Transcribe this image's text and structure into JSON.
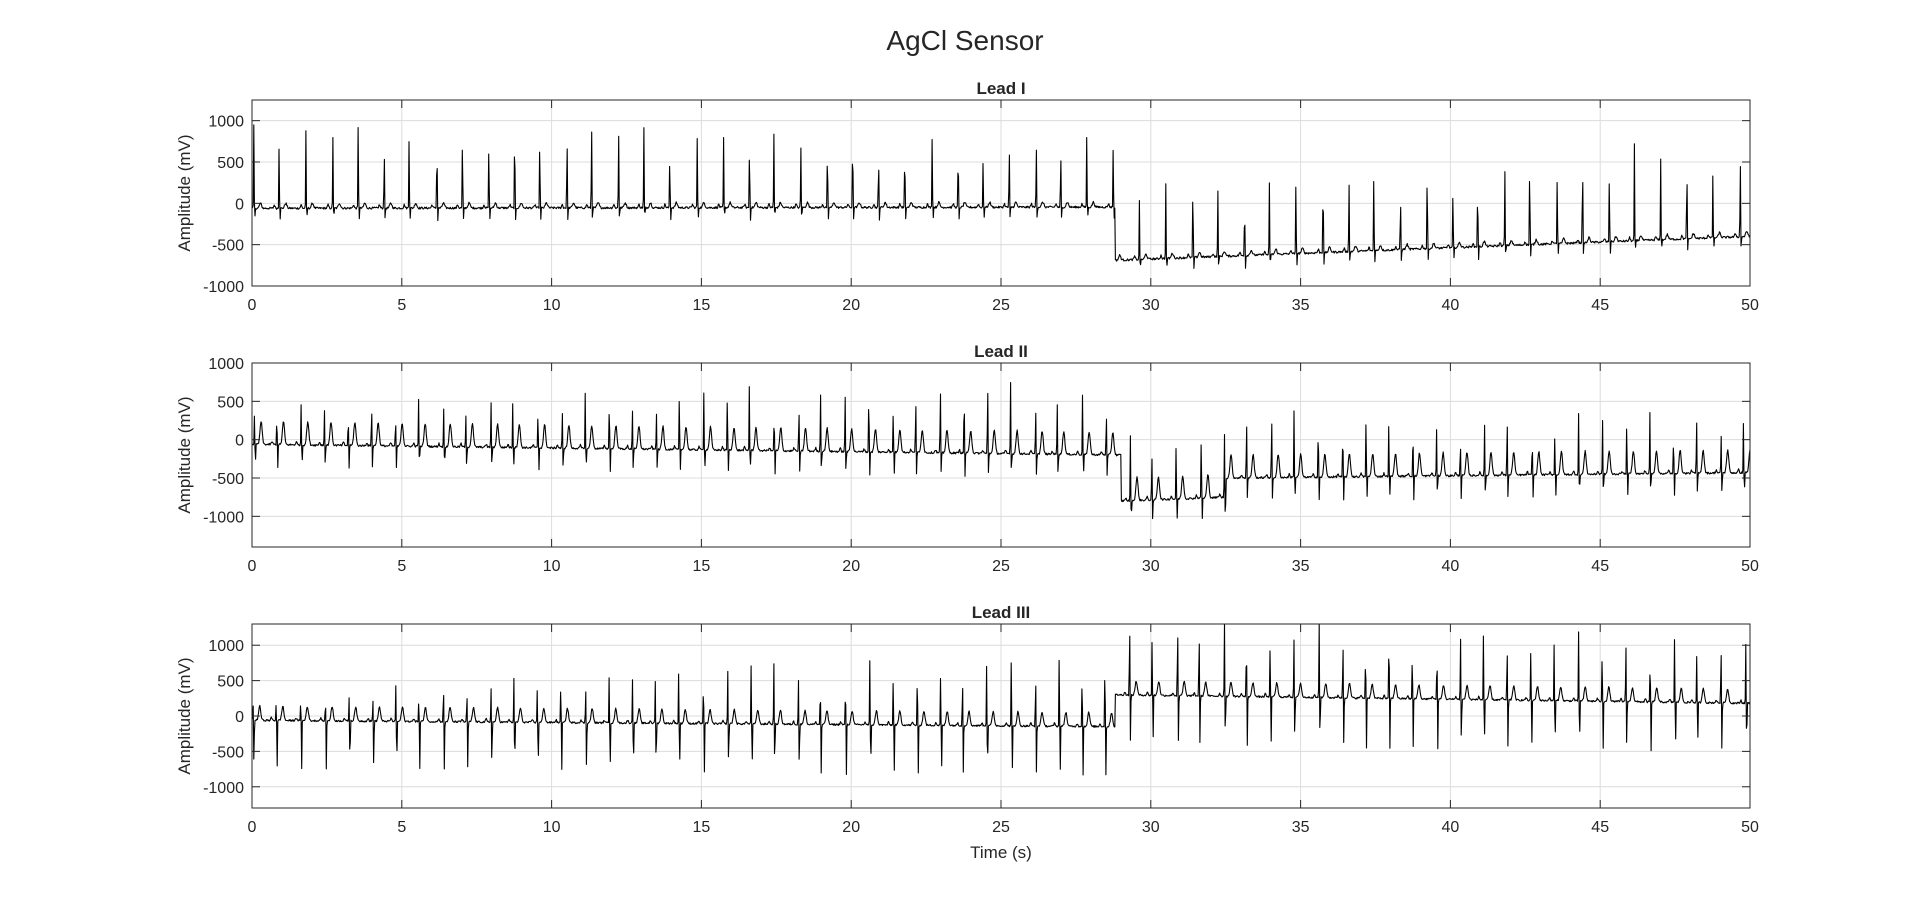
{
  "figure": {
    "title": "AgCl Sensor",
    "trace_color": "#000000",
    "grid_color": "#dcdcdc",
    "background": "#ffffff"
  },
  "chart_data": [
    {
      "type": "line",
      "title": "Lead I",
      "xlabel": "",
      "ylabel": "Amplitude (mV)",
      "xlim": [
        0,
        50
      ],
      "ylim": [
        -1000,
        1250
      ],
      "xticks": [
        0,
        5,
        10,
        15,
        20,
        25,
        30,
        35,
        40,
        45,
        50
      ],
      "yticks": [
        -1000,
        -500,
        0,
        500,
        1000
      ],
      "grid": true,
      "signal": {
        "segments": [
          {
            "t_start": 0,
            "t_end": 28.8,
            "baseline_start": -60,
            "baseline_end": -45
          },
          {
            "t_start": 28.8,
            "t_end": 50,
            "baseline_start": -690,
            "baseline_end": -400
          }
        ],
        "beat_interval_s": 0.87,
        "r_peak_approx_mv": [
          1100,
          750,
          1100
        ],
        "s_trough_depth_mv": 150,
        "t_wave_mv": 60
      }
    },
    {
      "type": "line",
      "title": "Lead II",
      "xlabel": "",
      "ylabel": "Amplitude (mV)",
      "xlim": [
        0,
        50
      ],
      "ylim": [
        -1400,
        1000
      ],
      "xticks": [
        0,
        5,
        10,
        15,
        20,
        25,
        30,
        35,
        40,
        45,
        50
      ],
      "yticks": [
        -1000,
        -500,
        0,
        500,
        1000
      ],
      "grid": true,
      "signal": {
        "segments": [
          {
            "t_start": 0,
            "t_end": 29,
            "baseline_start": -60,
            "baseline_end": -200
          },
          {
            "t_start": 29,
            "t_end": 32.5,
            "baseline_start": -800,
            "baseline_end": -750
          },
          {
            "t_start": 32.5,
            "t_end": 50,
            "baseline_start": -500,
            "baseline_end": -430
          }
        ],
        "beat_interval_s": 0.79,
        "r_peak_approx_mv": [
          450,
          850,
          650
        ],
        "s_trough_depth_mv": 300,
        "t_wave_mv": 300
      }
    },
    {
      "type": "line",
      "title": "Lead III",
      "xlabel": "Time (s)",
      "ylabel": "Amplitude (mV)",
      "xlim": [
        0,
        50
      ],
      "ylim": [
        -1300,
        1300
      ],
      "xticks": [
        0,
        5,
        10,
        15,
        20,
        25,
        30,
        35,
        40,
        45,
        50
      ],
      "yticks": [
        -1000,
        -500,
        0,
        500,
        1000
      ],
      "grid": true,
      "signal": {
        "segments": [
          {
            "t_start": 0,
            "t_end": 28.8,
            "baseline_start": -60,
            "baseline_end": -150
          },
          {
            "t_start": 28.8,
            "t_end": 50,
            "baseline_start": 300,
            "baseline_end": 180
          }
        ],
        "beat_interval_s": 0.79,
        "r_peak_approx_mv": [
          300,
          1000,
          800
        ],
        "s_trough_depth_mv": 700,
        "t_wave_mv": 200
      }
    }
  ]
}
